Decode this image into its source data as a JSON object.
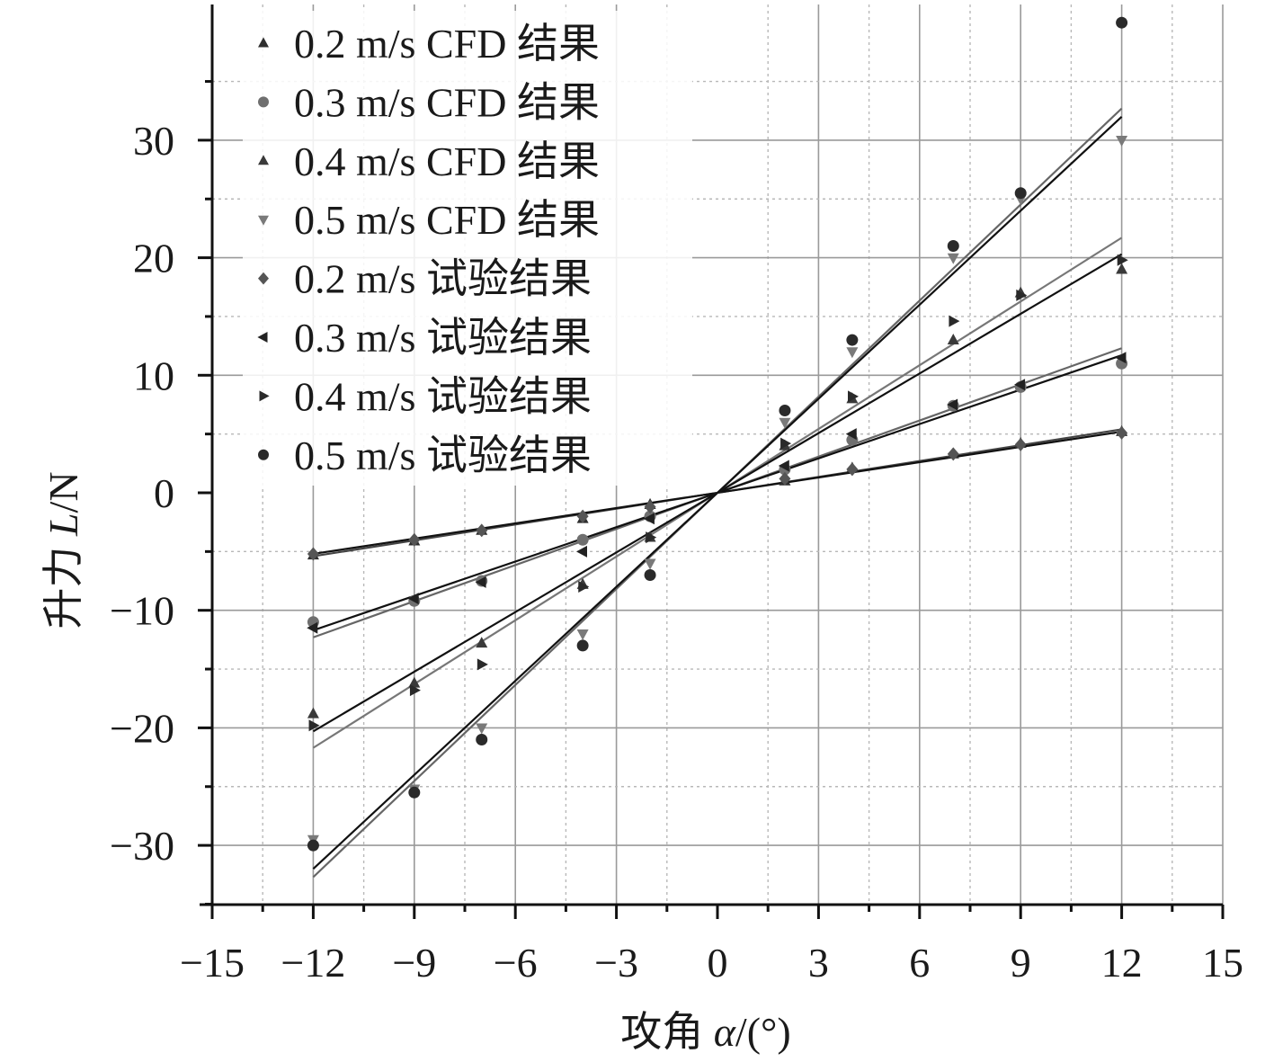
{
  "chart_data": {
    "type": "scatter",
    "xlabel_text": "攻角 ",
    "xlabel_symbol": "α",
    "xlabel_unit": "/(°)",
    "ylabel_text": "升力 ",
    "ylabel_symbol": "L",
    "ylabel_unit": "/N",
    "xlim": [
      -15,
      15
    ],
    "ylim": [
      -35,
      40
    ],
    "x_ticks": [
      -15,
      -12,
      -9,
      -6,
      -3,
      0,
      3,
      6,
      9,
      12,
      15
    ],
    "x_tick_labels": [
      "−15",
      "−12",
      "−9",
      "−6",
      "−3",
      "0",
      "3",
      "6",
      "9",
      "12",
      "15"
    ],
    "y_ticks": [
      -30,
      -20,
      -10,
      0,
      10,
      20,
      30
    ],
    "y_tick_labels": [
      "−30",
      "−20",
      "−10",
      "0",
      "10",
      "20",
      "30"
    ],
    "grid": true,
    "legend_position": "top-left",
    "series": [
      {
        "name": "0.2 m/s CFD 结果",
        "marker": "triangle-up",
        "color": "#2e2e2e",
        "x": [
          -12,
          -9,
          -7,
          -4,
          -2,
          2,
          4,
          7,
          9,
          12
        ],
        "y": [
          -5.3,
          -4.1,
          -3.2,
          -2.2,
          -1.0,
          1.0,
          2.1,
          3.3,
          4.2,
          5.2
        ]
      },
      {
        "name": "0.3 m/s CFD 结果",
        "marker": "circle",
        "color": "#6f6f6f",
        "x": [
          -12,
          -9,
          -7,
          -4,
          -2,
          2,
          4,
          7,
          9,
          12
        ],
        "y": [
          -11.0,
          -9.2,
          -7.5,
          -4.0,
          -2.0,
          2.0,
          4.5,
          7.4,
          9.0,
          11.0
        ]
      },
      {
        "name": "0.4 m/s CFD 结果",
        "marker": "triangle-up",
        "color": "#3a3a3a",
        "x": [
          -12,
          -9,
          -7,
          -4,
          -2,
          2,
          4,
          7,
          9,
          12
        ],
        "y": [
          -18.8,
          -16.2,
          -12.8,
          -7.8,
          -3.8,
          4.0,
          8.0,
          13.0,
          17.0,
          19.0
        ]
      },
      {
        "name": "0.5 m/s CFD 结果",
        "marker": "triangle-down",
        "color": "#7a7a7a",
        "x": [
          -12,
          -9,
          -7,
          -4,
          -2,
          2,
          4,
          7,
          9,
          12
        ],
        "y": [
          -29.5,
          -25.2,
          -20.0,
          -12.0,
          -6.0,
          6.0,
          12.0,
          20.0,
          25.0,
          30.0
        ]
      },
      {
        "name": "0.2 m/s 试验结果",
        "marker": "diamond",
        "color": "#555555",
        "x": [
          -12,
          -9,
          -7,
          -4,
          -2,
          2,
          4,
          7,
          9,
          12
        ],
        "y": [
          -5.2,
          -4.0,
          -3.2,
          -2.0,
          -1.2,
          1.2,
          2.0,
          3.3,
          4.1,
          5.1
        ]
      },
      {
        "name": "0.3 m/s 试验结果",
        "marker": "triangle-left",
        "color": "#222222",
        "x": [
          -12,
          -9,
          -7,
          -4,
          -2,
          2,
          4,
          7,
          9,
          12
        ],
        "y": [
          -11.5,
          -9.0,
          -7.6,
          -5.0,
          -2.2,
          2.3,
          5.0,
          7.5,
          9.2,
          11.5
        ]
      },
      {
        "name": "0.4 m/s 试验结果",
        "marker": "triangle-right",
        "color": "#2a2a2a",
        "x": [
          -12,
          -9,
          -7,
          -4,
          -2,
          2,
          4,
          7,
          9,
          12
        ],
        "y": [
          -19.8,
          -16.8,
          -14.6,
          -8.0,
          -3.8,
          4.2,
          8.2,
          14.6,
          16.8,
          19.8
        ]
      },
      {
        "name": "0.5 m/s 试验结果",
        "marker": "circle",
        "color": "#2a2a2a",
        "x": [
          -12,
          -9,
          -7,
          -4,
          -2,
          2,
          4,
          7,
          9,
          12
        ],
        "y": [
          -30.0,
          -25.5,
          -21.0,
          -13.0,
          -7.0,
          7.0,
          13.0,
          21.0,
          25.5,
          40.0
        ]
      }
    ],
    "fit_lines": [
      {
        "name": "fit-0.2-cfd",
        "x": [
          -12,
          12
        ],
        "y": [
          -5.4,
          5.4
        ],
        "color": "#444444"
      },
      {
        "name": "fit-0.2-exp",
        "x": [
          -12,
          12
        ],
        "y": [
          -5.2,
          5.2
        ],
        "color": "#111111"
      },
      {
        "name": "fit-0.3-cfd",
        "x": [
          -12,
          12
        ],
        "y": [
          -12.3,
          12.3
        ],
        "color": "#666666"
      },
      {
        "name": "fit-0.3-exp",
        "x": [
          -12,
          12
        ],
        "y": [
          -11.7,
          11.7
        ],
        "color": "#111111"
      },
      {
        "name": "fit-0.4-cfd",
        "x": [
          -12,
          12
        ],
        "y": [
          -21.7,
          21.7
        ],
        "color": "#777777"
      },
      {
        "name": "fit-0.4-exp",
        "x": [
          -12,
          12
        ],
        "y": [
          -20.3,
          20.3
        ],
        "color": "#111111"
      },
      {
        "name": "fit-0.5-cfd",
        "x": [
          -12,
          12
        ],
        "y": [
          -32.7,
          32.7
        ],
        "color": "#666666"
      },
      {
        "name": "fit-0.5-exp",
        "x": [
          -12,
          12
        ],
        "y": [
          -32.0,
          32.0
        ],
        "color": "#111111"
      }
    ]
  }
}
